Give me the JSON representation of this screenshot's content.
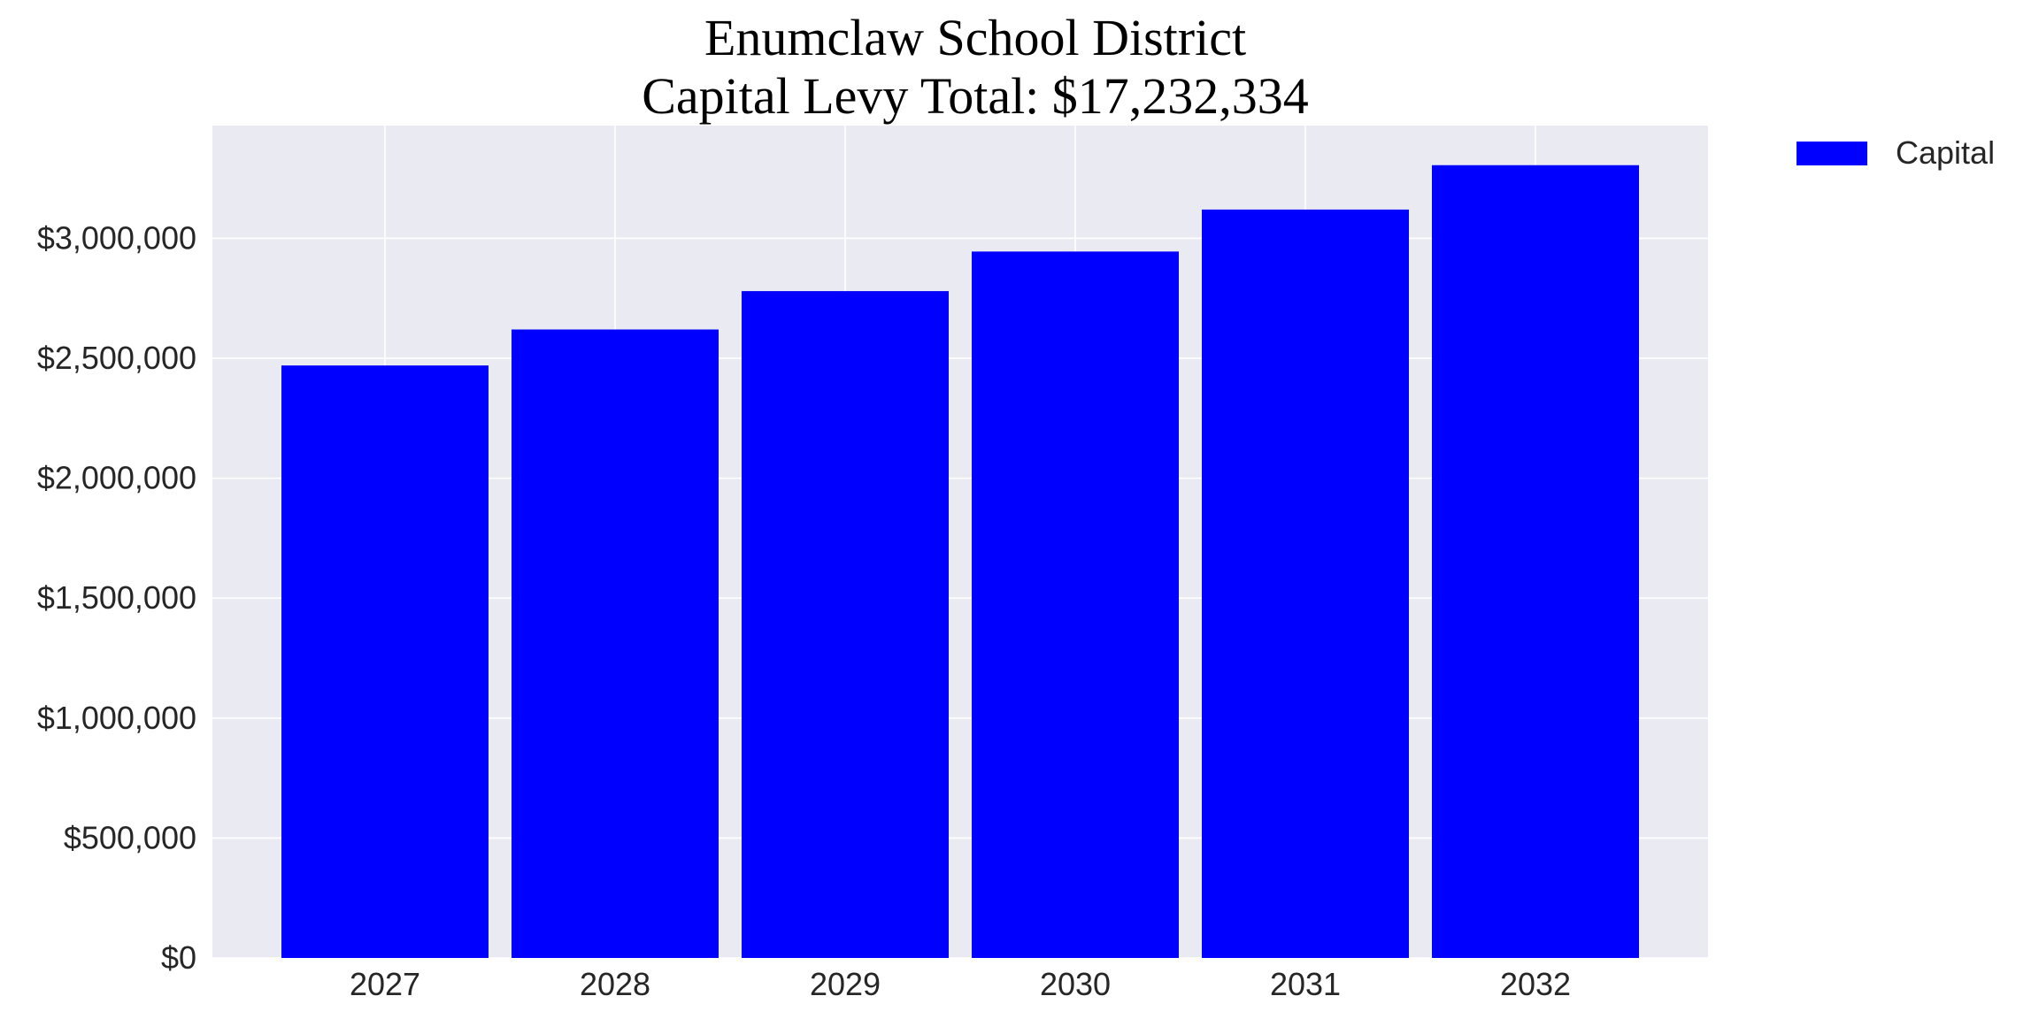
{
  "chart_data": {
    "type": "bar",
    "title_lines": [
      "Enumclaw School District",
      "Capital Levy Total: $17,232,334"
    ],
    "categories": [
      "2027",
      "2028",
      "2029",
      "2030",
      "2031",
      "2032"
    ],
    "series": [
      {
        "name": "Capital",
        "color": "#0000ff",
        "values": [
          2470000,
          2620000,
          2780000,
          2945000,
          3120000,
          3305000
        ]
      }
    ],
    "y_ticks": [
      0,
      500000,
      1000000,
      1500000,
      2000000,
      2500000,
      3000000
    ],
    "y_tick_labels": [
      "$0",
      "$500,000",
      "$1,000,000",
      "$1,500,000",
      "$2,000,000",
      "$2,500,000",
      "$3,000,000"
    ],
    "ylim": [
      0,
      3470000
    ],
    "grid": true,
    "legend_position": "top-right-outside",
    "plot_background": "#eaeaf2",
    "grid_color": "#ffffff"
  }
}
